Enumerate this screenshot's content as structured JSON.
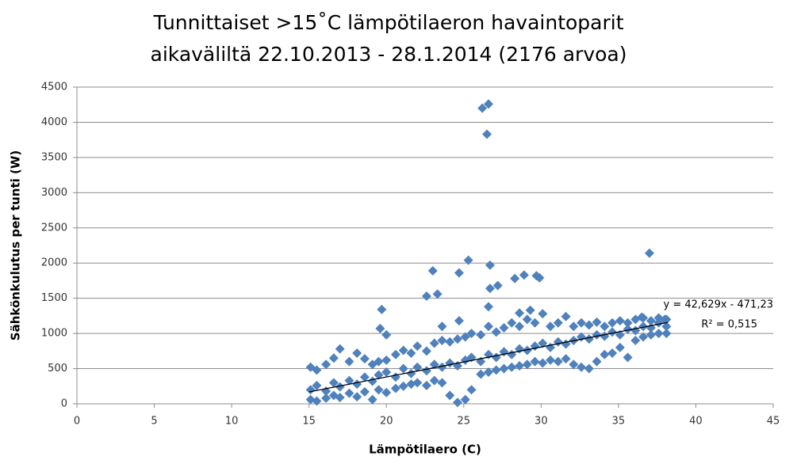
{
  "chart_data": {
    "type": "scatter",
    "title": [
      "Tunnittaiset >15˚C lämpötilaeron havaintoparit",
      "aikaväliltä 22.10.2013 - 28.1.2014 (2176 arvoa)"
    ],
    "x_label": "Lämpötilaero (C)",
    "y_label": "Sähkönkulutus per tunti (W)",
    "xlim": [
      0,
      45
    ],
    "xticks": [
      0,
      5,
      10,
      15,
      20,
      25,
      30,
      35,
      40,
      45
    ],
    "ylim": [
      0,
      4500
    ],
    "yticks": [
      0,
      500,
      1000,
      1500,
      2000,
      2500,
      3000,
      3500,
      4000,
      4500
    ],
    "grid": true,
    "color": "#4f81bd",
    "x": [
      15.1,
      15.1,
      15.1,
      15.5,
      15.5,
      15.5,
      16.1,
      16.1,
      16.1,
      16.6,
      16.6,
      16.6,
      17.0,
      17.0,
      17.0,
      17.6,
      17.6,
      17.6,
      18.1,
      18.1,
      18.1,
      18.6,
      18.6,
      18.6,
      19.1,
      19.1,
      19.1,
      19.5,
      19.5,
      19.5,
      20.0,
      20.0,
      20.0,
      20.6,
      20.6,
      20.6,
      21.1,
      21.1,
      21.1,
      21.6,
      21.6,
      21.6,
      22.0,
      22.0,
      22.0,
      22.6,
      22.6,
      22.6,
      23.1,
      23.1,
      23.1,
      23.6,
      23.6,
      23.6,
      24.1,
      24.1,
      24.1,
      24.6,
      24.6,
      24.6,
      25.1,
      25.1,
      25.1,
      25.5,
      25.5,
      25.5,
      26.1,
      26.1,
      26.1,
      26.6,
      26.6,
      26.6,
      27.1,
      27.1,
      27.1,
      27.6,
      27.6,
      27.6,
      28.1,
      28.1,
      28.1,
      28.6,
      28.6,
      28.6,
      29.1,
      29.1,
      29.1,
      29.6,
      29.6,
      29.6,
      30.1,
      30.1,
      30.1,
      30.6,
      30.6,
      30.6,
      31.1,
      31.1,
      31.1,
      31.6,
      31.6,
      31.6,
      32.1,
      32.1,
      32.1,
      32.6,
      32.6,
      32.6,
      33.1,
      33.1,
      33.1,
      33.6,
      33.6,
      33.6,
      34.1,
      34.1,
      34.1,
      34.6,
      34.6,
      34.6,
      35.1,
      35.1,
      35.1,
      35.6,
      35.6,
      35.6,
      36.1,
      36.1,
      36.1,
      36.6,
      36.6,
      36.6,
      37.1,
      37.1,
      37.1,
      37.6,
      37.6,
      37.6,
      38.1,
      38.1,
      38.1,
      26.2,
      26.6,
      26.5,
      37.0,
      25.3,
      23.0,
      24.7,
      26.7,
      29.7,
      28.9,
      28.3,
      29.9,
      27.2,
      26.7,
      22.6,
      23.3,
      19.7,
      26.6,
      29.3,
      28.6,
      19.6,
      20.0,
      24.7,
      23.6,
      36.5,
      38.0
    ],
    "values": [
      60,
      200,
      520,
      40,
      260,
      480,
      80,
      180,
      560,
      120,
      300,
      650,
      90,
      240,
      780,
      150,
      330,
      600,
      100,
      280,
      720,
      170,
      380,
      640,
      60,
      320,
      560,
      200,
      410,
      600,
      160,
      450,
      620,
      220,
      380,
      700,
      250,
      500,
      760,
      280,
      430,
      720,
      300,
      520,
      820,
      260,
      470,
      750,
      330,
      560,
      860,
      300,
      520,
      900,
      120,
      580,
      880,
      20,
      540,
      920,
      60,
      620,
      950,
      200,
      660,
      1000,
      420,
      600,
      980,
      450,
      700,
      1100,
      480,
      660,
      1020,
      500,
      740,
      1080,
      520,
      700,
      1150,
      540,
      780,
      1100,
      560,
      760,
      1200,
      600,
      820,
      1150,
      580,
      860,
      1280,
      620,
      800,
      1100,
      600,
      880,
      1150,
      640,
      850,
      1240,
      560,
      900,
      1100,
      520,
      950,
      1150,
      500,
      920,
      1120,
      600,
      980,
      1160,
      700,
      960,
      1100,
      720,
      1020,
      1150,
      800,
      980,
      1180,
      660,
      1060,
      1150,
      900,
      1040,
      1200,
      950,
      1100,
      1220,
      980,
      1080,
      1180,
      1000,
      1150,
      1220,
      1000,
      1100,
      1200,
      4200,
      4260,
      3830,
      2140,
      2040,
      1890,
      1860,
      1970,
      1820,
      1830,
      1780,
      1790,
      1680,
      1640,
      1530,
      1560,
      1340,
      1380,
      1330,
      1290,
      1070,
      980,
      1180,
      1100,
      1230,
      1200
    ],
    "trendline": {
      "slope": 42.629,
      "intercept": -471.23,
      "xrange": [
        15,
        38.2
      ],
      "color": "#000000",
      "label": "y = 42,629x - 471,23",
      "r2_label": "R² = 0,515"
    }
  }
}
